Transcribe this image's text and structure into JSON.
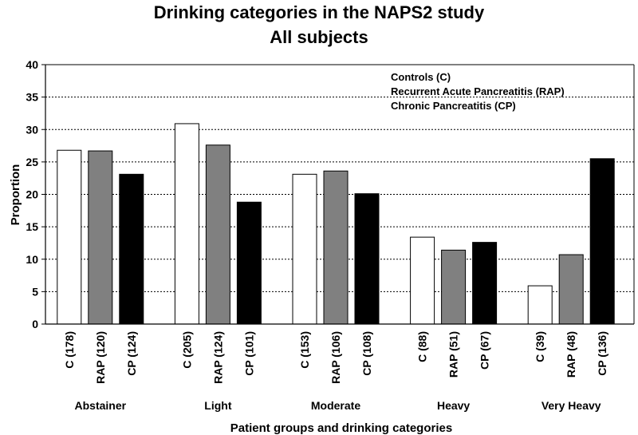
{
  "title_lines": [
    "Drinking categories in the NAPS2 study",
    "All subjects"
  ],
  "legend_lines": [
    "Controls (C)",
    "Recurrent Acute Pancreatitis (RAP)",
    "Chronic Pancreatitis (CP)"
  ],
  "colors": {
    "C": "#ffffff",
    "RAP": "#808080",
    "CP": "#000000",
    "grid": "#000000"
  },
  "chart_data": {
    "type": "bar",
    "title": "Drinking categories in the NAPS2 study\nAll subjects",
    "xlabel": "Patient groups and drinking categories",
    "ylabel": "Proportion",
    "ylim": [
      0,
      40
    ],
    "yticks": [
      0,
      5,
      10,
      15,
      20,
      25,
      30,
      35,
      40
    ],
    "grid": "horizontal dashed",
    "legend": "top-right",
    "groups": [
      {
        "name": "Abstainer",
        "bars": [
          {
            "label": "C (178)",
            "series": "C",
            "value": 26.8
          },
          {
            "label": "RAP (120)",
            "series": "RAP",
            "value": 26.7
          },
          {
            "label": "CP (124)",
            "series": "CP",
            "value": 23.1
          }
        ]
      },
      {
        "name": "Light",
        "bars": [
          {
            "label": "C (205)",
            "series": "C",
            "value": 30.9
          },
          {
            "label": "RAP (124)",
            "series": "RAP",
            "value": 27.6
          },
          {
            "label": "CP (101)",
            "series": "CP",
            "value": 18.8
          }
        ]
      },
      {
        "name": "Moderate",
        "bars": [
          {
            "label": "C (153)",
            "series": "C",
            "value": 23.1
          },
          {
            "label": "RAP (106)",
            "series": "RAP",
            "value": 23.6
          },
          {
            "label": "CP (108)",
            "series": "CP",
            "value": 20.1
          }
        ]
      },
      {
        "name": "Heavy",
        "bars": [
          {
            "label": "C (88)",
            "series": "C",
            "value": 13.4
          },
          {
            "label": "RAP (51)",
            "series": "RAP",
            "value": 11.4
          },
          {
            "label": "CP (67)",
            "series": "CP",
            "value": 12.6
          }
        ]
      },
      {
        "name": "Very Heavy",
        "bars": [
          {
            "label": "C (39)",
            "series": "C",
            "value": 5.9
          },
          {
            "label": "RAP (48)",
            "series": "RAP",
            "value": 10.7
          },
          {
            "label": "CP (136)",
            "series": "CP",
            "value": 25.5
          }
        ]
      }
    ]
  }
}
